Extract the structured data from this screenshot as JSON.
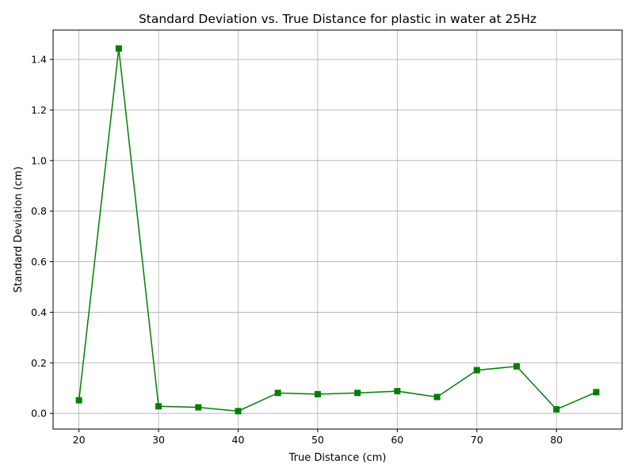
{
  "chart_data": {
    "type": "line",
    "title": "Standard Deviation vs. True Distance for plastic in water at 25Hz",
    "xlabel": "True Distance (cm)",
    "ylabel": "Standard Deviation (cm)",
    "xlim": [
      16.75,
      88.25
    ],
    "ylim": [
      -0.062,
      1.516
    ],
    "xticks": [
      20,
      30,
      40,
      50,
      60,
      70,
      80
    ],
    "yticks": [
      0.0,
      0.2,
      0.4,
      0.6,
      0.8,
      1.0,
      1.2,
      1.4
    ],
    "grid": true,
    "marker": "square",
    "color": "#008000",
    "series": [
      {
        "x": [
          20,
          25,
          30,
          35,
          40,
          45,
          50,
          55,
          60,
          65,
          70,
          75,
          80,
          85
        ],
        "values": [
          0.052,
          1.443,
          0.028,
          0.024,
          0.009,
          0.081,
          0.076,
          0.081,
          0.088,
          0.065,
          0.171,
          0.186,
          0.016,
          0.084
        ]
      }
    ]
  }
}
